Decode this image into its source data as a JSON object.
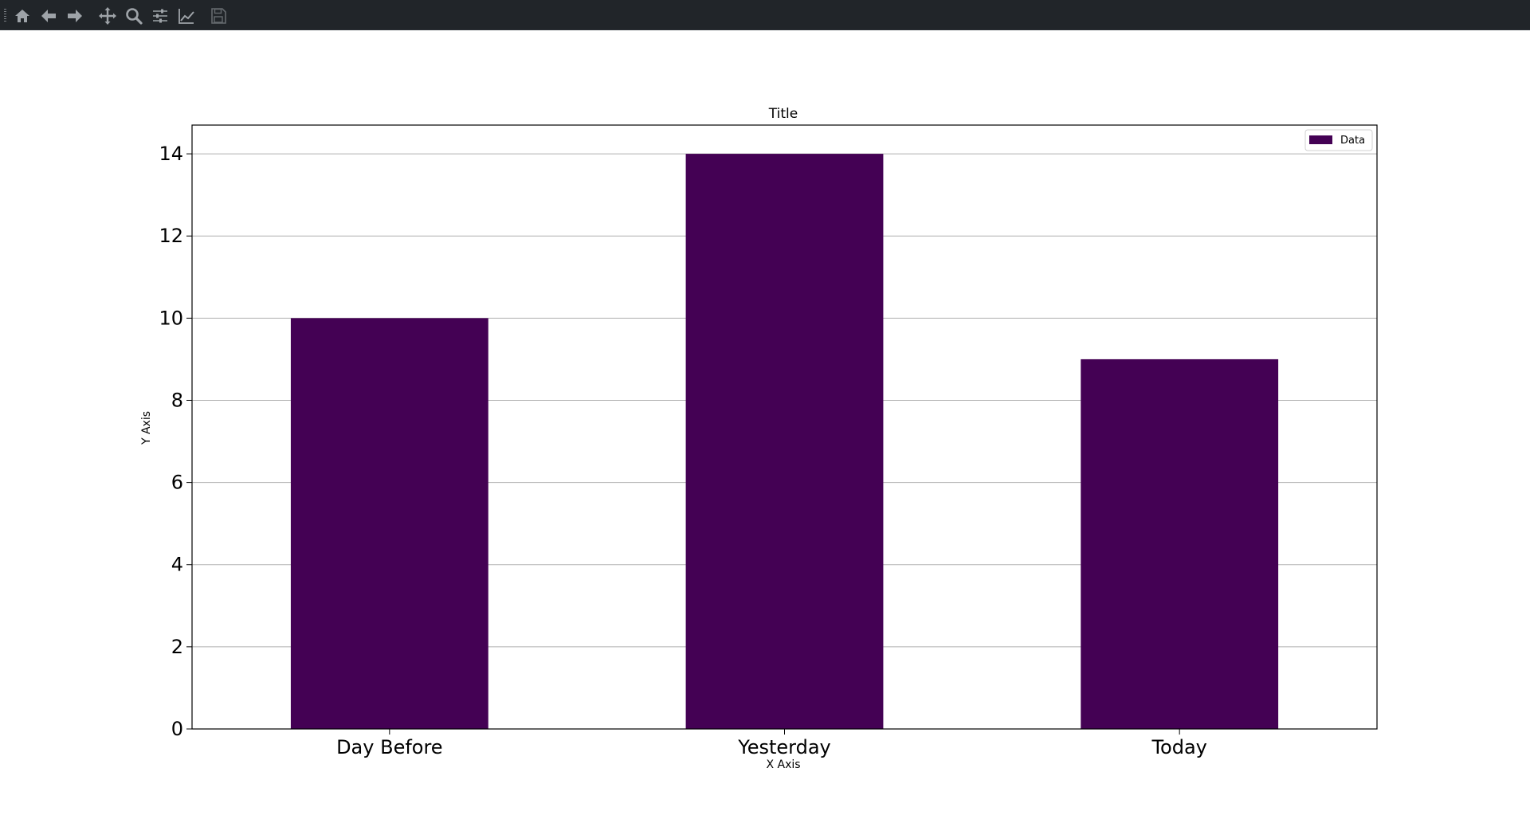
{
  "toolbar": {
    "buttons": [
      {
        "name": "home-button",
        "icon": "home-icon",
        "tooltip": "Reset original view"
      },
      {
        "name": "back-button",
        "icon": "arrow-left-icon",
        "tooltip": "Back to previous view"
      },
      {
        "name": "forward-button",
        "icon": "arrow-right-icon",
        "tooltip": "Forward to next view"
      },
      {
        "name": "pan-button",
        "icon": "move-icon",
        "tooltip": "Pan axes"
      },
      {
        "name": "zoom-button",
        "icon": "magnifier-icon",
        "tooltip": "Zoom to rectangle"
      },
      {
        "name": "configure-subplots-button",
        "icon": "sliders-icon",
        "tooltip": "Configure subplots"
      },
      {
        "name": "edit-axis-button",
        "icon": "line-chart-icon",
        "tooltip": "Edit axis"
      },
      {
        "name": "save-button",
        "icon": "floppy-disk-icon",
        "tooltip": "Save the figure"
      }
    ]
  },
  "colors": {
    "toolbar_bg": "#212529",
    "icon": "#9ea3a8",
    "bar": "#440154",
    "grid": "#b0b0b0",
    "axes": "#000000"
  },
  "chart_data": {
    "type": "bar",
    "title": "Title",
    "xlabel": "X Axis",
    "ylabel": "Y Axis",
    "categories": [
      "Day Before",
      "Yesterday",
      "Today"
    ],
    "series": [
      {
        "name": "Data",
        "values": [
          10,
          14,
          9
        ],
        "color": "#440154"
      }
    ],
    "ylim": [
      0,
      14.7
    ],
    "yticks": [
      0,
      2,
      4,
      6,
      8,
      10,
      12,
      14
    ],
    "grid": "y-major",
    "legend_position": "top-right"
  }
}
